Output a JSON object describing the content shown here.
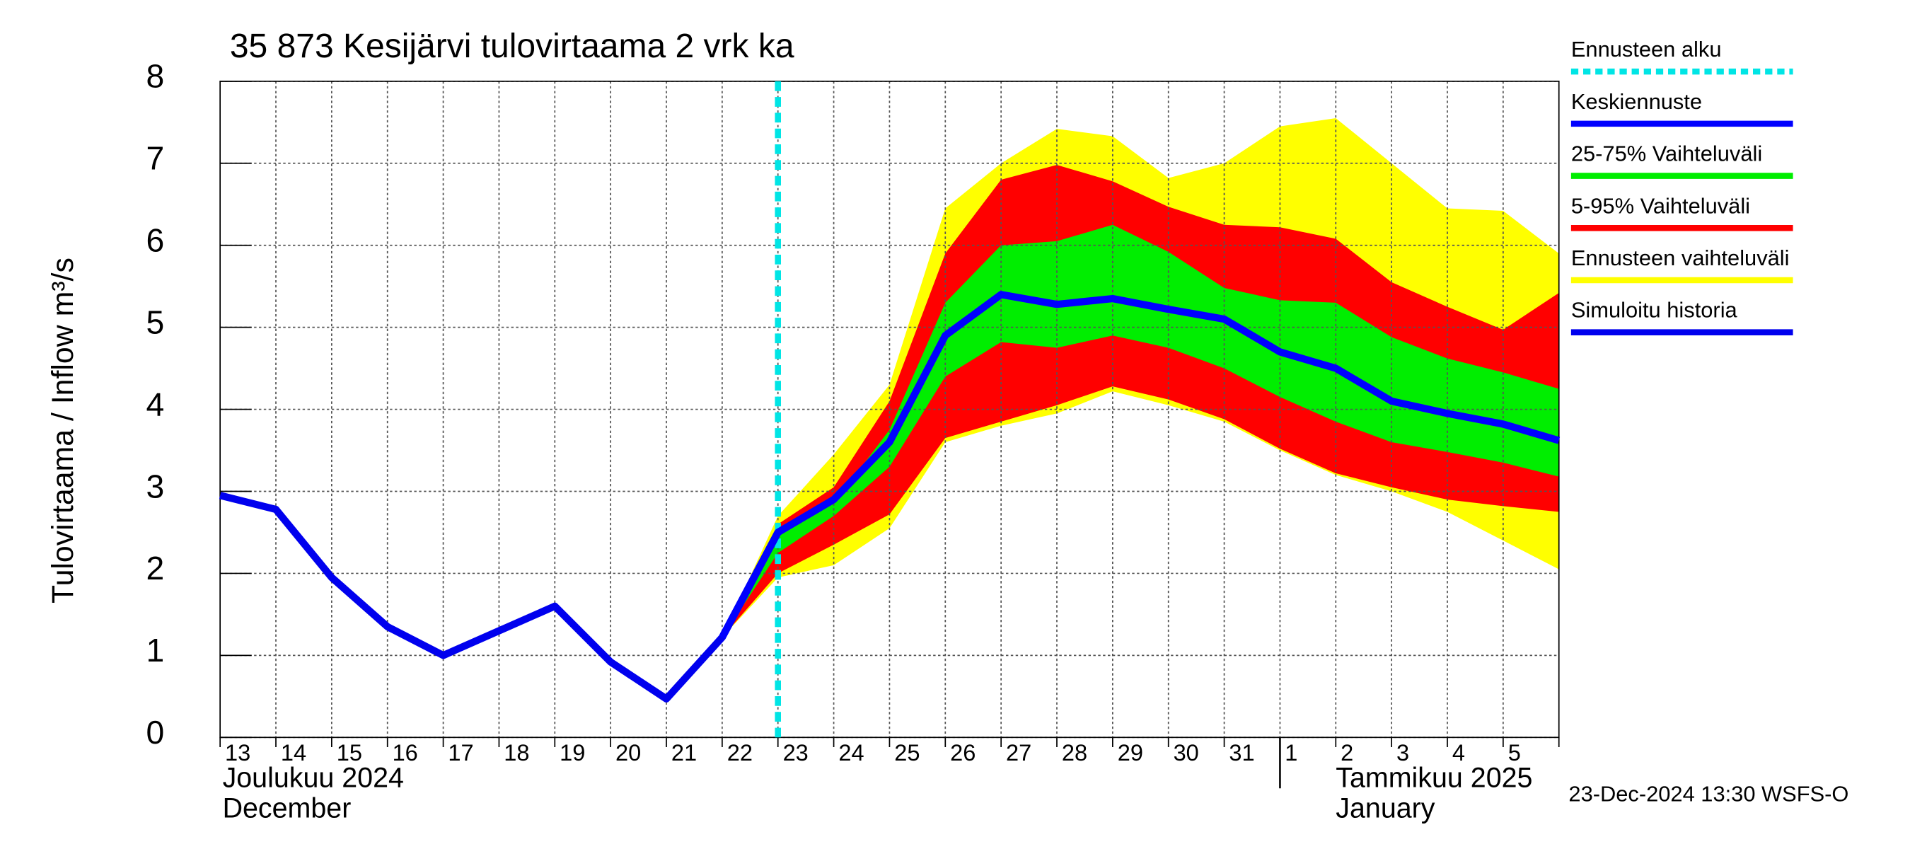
{
  "chart_data": {
    "type": "line",
    "title": "35 873 Kesijärvi tulovirtaama 2 vrk ka",
    "ylabel": "Tulovirtaama / Inflow    m³/s",
    "timestamp": "23-Dec-2024 13:30 WSFS-O",
    "months": [
      {
        "label": "Joulukuu  2024",
        "label2": "December",
        "index": 0
      },
      {
        "label": "Tammikuu  2025",
        "label2": "January",
        "index": 19
      }
    ],
    "categories": [
      "13",
      "14",
      "15",
      "16",
      "17",
      "18",
      "19",
      "20",
      "21",
      "22",
      "23",
      "24",
      "25",
      "26",
      "27",
      "28",
      "29",
      "30",
      "31",
      "1",
      "2",
      "3",
      "4",
      "5",
      null
    ],
    "ylim": [
      0,
      8
    ],
    "yticks": [
      0,
      1,
      2,
      3,
      4,
      5,
      6,
      7,
      8
    ],
    "grid": true,
    "forecast_start": {
      "name": "Ennusteen alku",
      "color": "#00e5e5",
      "index": 10
    },
    "series": [
      {
        "name": "Keskiennuste",
        "color": "#0000ff",
        "kind": "line",
        "values": [
          null,
          null,
          null,
          null,
          null,
          null,
          null,
          null,
          null,
          1.22,
          2.5,
          2.9,
          3.6,
          4.9,
          5.4,
          5.28,
          5.35,
          5.22,
          5.1,
          4.7,
          4.5,
          4.1,
          3.95,
          3.82,
          3.62
        ]
      },
      {
        "name": "25-75% Vaihteluväli",
        "color": "#00ee00",
        "kind": "band",
        "high": [
          null,
          null,
          null,
          null,
          null,
          null,
          null,
          null,
          null,
          1.22,
          2.45,
          2.85,
          3.75,
          5.3,
          6.0,
          6.05,
          6.25,
          5.92,
          5.48,
          5.33,
          5.3,
          4.88,
          4.62,
          4.45,
          4.25
        ],
        "low": [
          null,
          null,
          null,
          null,
          null,
          null,
          null,
          null,
          null,
          1.22,
          2.25,
          2.7,
          3.3,
          4.4,
          4.82,
          4.75,
          4.9,
          4.75,
          4.5,
          4.15,
          3.85,
          3.6,
          3.48,
          3.35,
          3.18
        ]
      },
      {
        "name": "5-95% Vaihteluväli",
        "color": "#ff0000",
        "kind": "band",
        "high": [
          null,
          null,
          null,
          null,
          null,
          null,
          null,
          null,
          null,
          1.22,
          2.6,
          3.05,
          4.1,
          5.9,
          6.8,
          6.98,
          6.78,
          6.47,
          6.25,
          6.22,
          6.08,
          5.55,
          5.25,
          4.97,
          5.42
        ],
        "low": [
          null,
          null,
          null,
          null,
          null,
          null,
          null,
          null,
          null,
          1.22,
          2.0,
          2.35,
          2.72,
          3.65,
          3.85,
          4.05,
          4.28,
          4.12,
          3.88,
          3.52,
          3.22,
          3.05,
          2.9,
          2.82,
          2.75
        ]
      },
      {
        "name": "Ennusteen vaihteluväli",
        "color": "#ffff00",
        "kind": "band",
        "high": [
          null,
          null,
          null,
          null,
          null,
          null,
          null,
          null,
          null,
          1.22,
          2.7,
          3.45,
          4.3,
          6.45,
          7.0,
          7.42,
          7.33,
          6.82,
          7.0,
          7.45,
          7.55,
          7.0,
          6.45,
          6.42,
          5.9
        ],
        "low": [
          null,
          null,
          null,
          null,
          null,
          null,
          null,
          null,
          null,
          1.22,
          1.95,
          2.1,
          2.55,
          3.6,
          3.8,
          3.95,
          4.22,
          4.05,
          3.85,
          3.5,
          3.2,
          3.0,
          2.75,
          2.4,
          2.05
        ]
      },
      {
        "name": "Simuloitu historia",
        "color": "#0000ee",
        "kind": "line",
        "values": [
          2.95,
          2.78,
          1.95,
          1.35,
          1.0,
          1.3,
          1.6,
          0.92,
          0.47,
          1.22,
          2.5,
          null,
          null,
          null,
          null,
          null,
          null,
          null,
          null,
          null,
          null,
          null,
          null,
          null,
          null
        ]
      }
    ]
  }
}
